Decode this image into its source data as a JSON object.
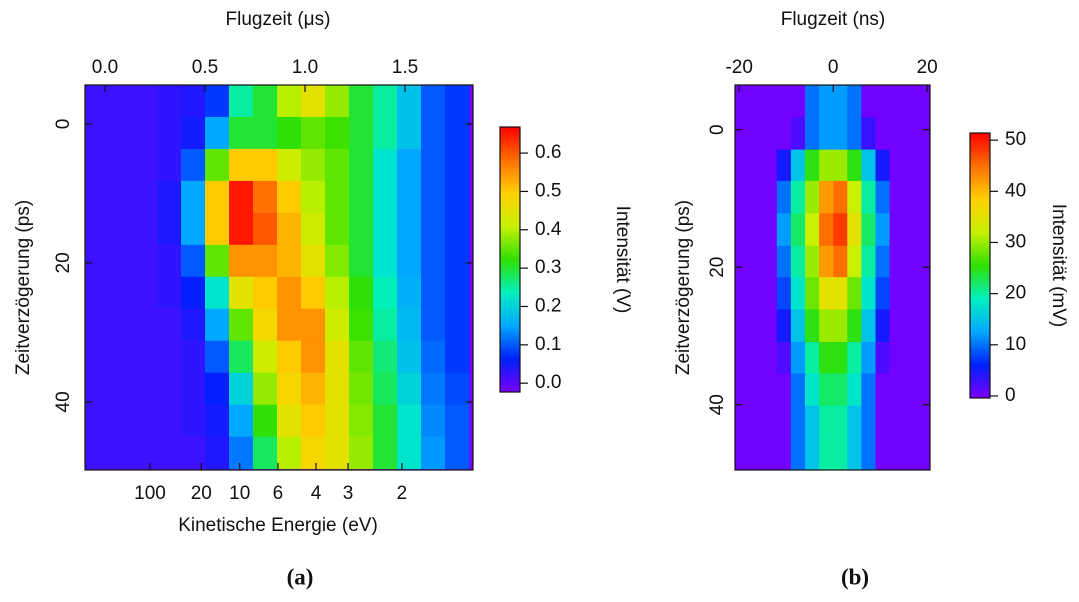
{
  "chart_data": [
    {
      "type": "heatmap",
      "caption": "(a)",
      "xlabel": "Flugzeit (μs)",
      "ylabel": "Zeitverzögerung (ps)",
      "x2label": "Kinetische Energie (eV)",
      "zlabel": "Intensität (V)",
      "xlim": [
        -0.1,
        1.84
      ],
      "xticks": [
        {
          "value": 0,
          "label": "0.0"
        },
        0.5,
        {
          "value": 1,
          "label": "1.0"
        },
        1.5
      ],
      "ylim": [
        49.8,
        -5.6
      ],
      "yticks": [
        0,
        20,
        40
      ],
      "x2ticks": [
        100,
        20,
        10,
        6,
        4,
        3,
        2
      ],
      "zlim": [
        -0.023,
        0.668
      ],
      "zticks": [
        {
          "value": 0,
          "label": "0.0"
        },
        0.1,
        0.2,
        0.3,
        0.4,
        0.5,
        0.6
      ],
      "colormap": [
        "#7a00ff",
        "#0020ff",
        "#00a8ff",
        "#00f0c0",
        "#30e000",
        "#c8f000",
        "#ffd000",
        "#ff7000",
        "#ff0000"
      ],
      "x": [
        -0.04,
        0.08,
        0.2,
        0.32,
        0.44,
        0.56,
        0.68,
        0.8,
        0.92,
        1.04,
        1.16,
        1.28,
        1.4,
        1.52,
        1.64,
        1.76
      ],
      "y": [
        -3.3,
        1.3,
        5.9,
        10.5,
        15.1,
        19.7,
        24.3,
        28.9,
        33.5,
        38.1,
        42.7,
        47.3
      ],
      "z": [
        [
          0.02,
          0.02,
          0.02,
          0.03,
          0.04,
          0.08,
          0.25,
          0.3,
          0.4,
          0.45,
          0.38,
          0.3,
          0.25,
          0.18,
          0.1,
          0.08
        ],
        [
          0.02,
          0.02,
          0.02,
          0.03,
          0.05,
          0.15,
          0.3,
          0.3,
          0.32,
          0.35,
          0.33,
          0.3,
          0.25,
          0.18,
          0.1,
          0.08
        ],
        [
          0.02,
          0.02,
          0.02,
          0.03,
          0.1,
          0.35,
          0.5,
          0.5,
          0.42,
          0.38,
          0.35,
          0.3,
          0.22,
          0.15,
          0.1,
          0.08
        ],
        [
          0.02,
          0.02,
          0.02,
          0.04,
          0.15,
          0.5,
          0.65,
          0.58,
          0.5,
          0.4,
          0.35,
          0.3,
          0.22,
          0.15,
          0.1,
          0.08
        ],
        [
          0.02,
          0.02,
          0.02,
          0.04,
          0.15,
          0.5,
          0.65,
          0.6,
          0.52,
          0.42,
          0.35,
          0.3,
          0.22,
          0.15,
          0.1,
          0.08
        ],
        [
          0.02,
          0.02,
          0.02,
          0.03,
          0.1,
          0.35,
          0.55,
          0.55,
          0.52,
          0.45,
          0.37,
          0.3,
          0.22,
          0.15,
          0.1,
          0.08
        ],
        [
          0.02,
          0.02,
          0.02,
          0.03,
          0.06,
          0.22,
          0.45,
          0.5,
          0.55,
          0.5,
          0.4,
          0.32,
          0.24,
          0.16,
          0.1,
          0.08
        ],
        [
          0.02,
          0.02,
          0.02,
          0.02,
          0.04,
          0.15,
          0.35,
          0.48,
          0.55,
          0.55,
          0.42,
          0.33,
          0.25,
          0.17,
          0.1,
          0.08
        ],
        [
          0.02,
          0.02,
          0.02,
          0.02,
          0.03,
          0.1,
          0.28,
          0.42,
          0.5,
          0.55,
          0.45,
          0.35,
          0.27,
          0.18,
          0.11,
          0.08
        ],
        [
          0.02,
          0.02,
          0.02,
          0.02,
          0.03,
          0.06,
          0.2,
          0.38,
          0.48,
          0.52,
          0.45,
          0.36,
          0.28,
          0.2,
          0.12,
          0.09
        ],
        [
          0.02,
          0.02,
          0.02,
          0.02,
          0.03,
          0.05,
          0.15,
          0.32,
          0.45,
          0.5,
          0.45,
          0.37,
          0.3,
          0.22,
          0.13,
          0.1
        ],
        [
          0.02,
          0.02,
          0.02,
          0.02,
          0.02,
          0.04,
          0.12,
          0.28,
          0.4,
          0.48,
          0.45,
          0.38,
          0.3,
          0.22,
          0.14,
          0.1
        ]
      ]
    },
    {
      "type": "heatmap",
      "caption": "(b)",
      "xlabel": "Flugzeit (ns)",
      "ylabel": "Zeitverzögerung (ps)",
      "zlabel": "Intensität (mV)",
      "xlim": [
        -20.9,
        20.6
      ],
      "xticks": [
        -20,
        0,
        20
      ],
      "ylim": [
        49.5,
        -6.5
      ],
      "yticks": [
        0,
        20,
        40
      ],
      "zlim": [
        -0.4,
        51.4
      ],
      "zticks": [
        0,
        10,
        20,
        30,
        40,
        50
      ],
      "colormap": [
        "#7a00ff",
        "#0020ff",
        "#00a8ff",
        "#00f0c0",
        "#30e000",
        "#c8f000",
        "#ffd000",
        "#ff7000",
        "#ff0000"
      ],
      "x": [
        -19.5,
        -16.5,
        -13.5,
        -10.5,
        -7.5,
        -4.5,
        -1.5,
        1.5,
        4.5,
        7.5,
        10.5,
        13.5,
        16.5,
        19.5
      ],
      "y": [
        -4.2,
        0.5,
        5.2,
        9.8,
        14.5,
        19.2,
        23.8,
        28.5,
        33.2,
        37.8,
        42.5,
        47.2
      ],
      "z": [
        [
          0,
          0,
          0,
          0,
          0,
          10,
          12,
          12,
          10,
          0,
          0,
          0,
          0,
          0
        ],
        [
          0,
          0,
          0,
          0,
          2,
          10,
          12,
          12,
          10,
          3,
          0,
          0,
          0,
          0
        ],
        [
          0,
          0,
          0,
          5,
          15,
          25,
          30,
          30,
          25,
          15,
          5,
          0,
          0,
          0
        ],
        [
          0,
          0,
          0,
          10,
          20,
          30,
          42,
          45,
          32,
          20,
          10,
          0,
          0,
          0
        ],
        [
          0,
          0,
          0,
          12,
          22,
          32,
          45,
          48,
          35,
          22,
          12,
          0,
          0,
          0
        ],
        [
          0,
          0,
          0,
          10,
          20,
          30,
          42,
          45,
          32,
          20,
          10,
          0,
          0,
          0
        ],
        [
          0,
          0,
          0,
          8,
          18,
          28,
          35,
          35,
          28,
          18,
          8,
          0,
          0,
          0
        ],
        [
          0,
          0,
          0,
          5,
          15,
          25,
          30,
          30,
          25,
          15,
          5,
          0,
          0,
          0
        ],
        [
          0,
          0,
          0,
          2,
          12,
          20,
          25,
          25,
          20,
          12,
          2,
          0,
          0,
          0
        ],
        [
          0,
          0,
          0,
          0,
          10,
          18,
          22,
          22,
          18,
          10,
          0,
          0,
          0,
          0
        ],
        [
          0,
          0,
          0,
          0,
          10,
          15,
          20,
          20,
          15,
          10,
          0,
          0,
          0,
          0
        ],
        [
          0,
          0,
          0,
          0,
          10,
          15,
          20,
          20,
          15,
          10,
          0,
          0,
          0,
          0
        ]
      ]
    }
  ]
}
